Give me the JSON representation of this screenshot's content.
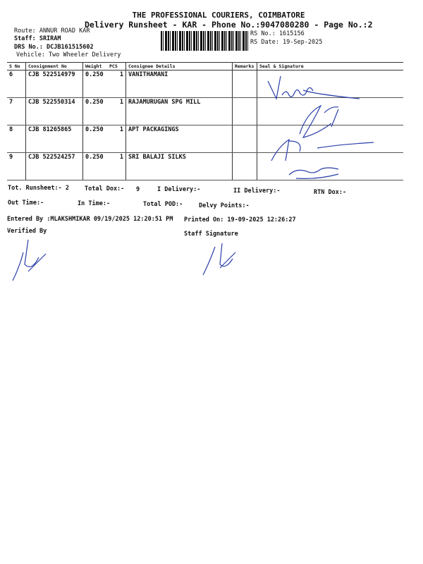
{
  "header": {
    "company": "THE PROFESSIONAL COURIERS, COIMBATORE",
    "subtitle": "Delivery Runsheet - KAR - Phone No.:9047080280 - Page No.:2",
    "route": "Route: ANNUR ROAD KAR",
    "staff": "Staff: SRIRAM",
    "drs": "DRS No.: DCJB161515602",
    "vehicle": "Vehicle: Two Wheeler Delivery",
    "rs_no": "RS No.: 1615156",
    "rs_date": "RS Date: 19-Sep-2025"
  },
  "table": {
    "headers": [
      "S No",
      "Consignment No",
      "Weight",
      "PCS",
      "Consignee Details",
      "Remarks",
      "Seal & Signature"
    ],
    "rows": [
      {
        "sno": "6",
        "cn": "CJB 522514979",
        "weight": "0.250",
        "pcs": "1",
        "consignee": "VANITHAMANI"
      },
      {
        "sno": "7",
        "cn": "CJB 522550314",
        "weight": "0.250",
        "pcs": "1",
        "consignee": "RAJAMURUGAN SPG MILL"
      },
      {
        "sno": "8",
        "cn": "CJB 81265865",
        "weight": "0.250",
        "pcs": "1",
        "consignee": "APT PACKAGINGS"
      },
      {
        "sno": "9",
        "cn": "CJB 522524257",
        "weight": "0.250",
        "pcs": "1",
        "consignee": "SRI BALAJI SILKS"
      }
    ]
  },
  "summary": {
    "tot_runsheet": "Tot. Runsheet:- 2",
    "total_dox": "Total Dox:-",
    "total_dox_val": "9",
    "i_delivery": "I Delivery:-",
    "ii_delivery": "II Delivery:-",
    "rtn_dox": "RTN Dox:-",
    "out_time": "Out Time:-",
    "in_time": "In Time:-",
    "total_pod": "Total POD:-",
    "delvy_points": "Delvy Points:-",
    "entered_by": "Entered By :MLAKSHMIKAR 09/19/2025 12:20:51 PM",
    "printed_on": "Printed On: 19-09-2025 12:26:27",
    "verified_by": "Verified By",
    "staff_signature": "Staff Signature"
  },
  "ink_color": "#2a3fa8"
}
